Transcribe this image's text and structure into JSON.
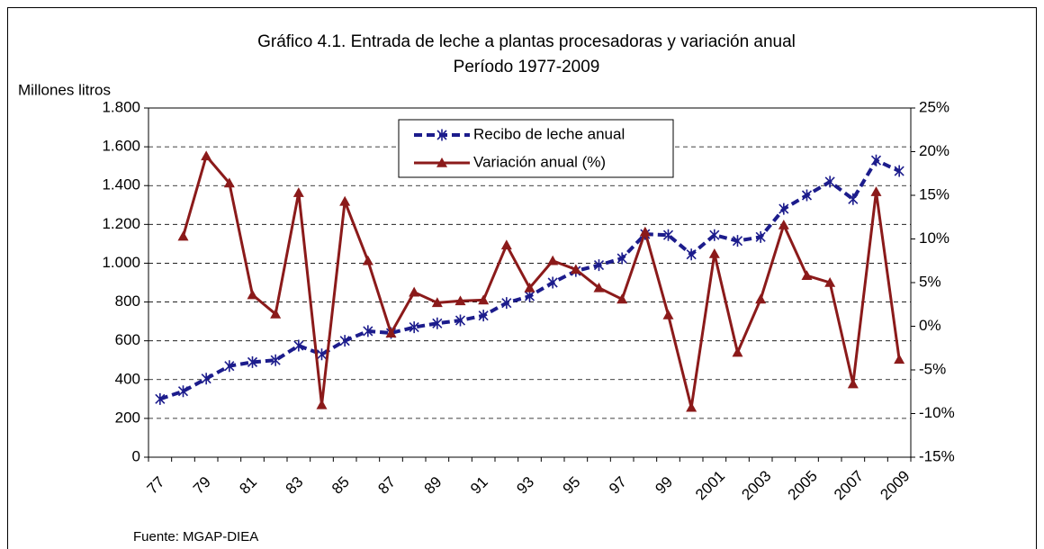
{
  "chart_data": {
    "type": "line",
    "title": "Gráfico 4.1. Entrada de leche a plantas procesadoras y variación anual",
    "subtitle": "Período 1977-2009",
    "y_label": "Millones litros",
    "source": "Fuente: MGAP-DIEA",
    "categories": [
      "77",
      null,
      "79",
      null,
      "81",
      null,
      "83",
      null,
      "85",
      null,
      "87",
      null,
      "89",
      null,
      "91",
      null,
      "93",
      null,
      "95",
      null,
      "97",
      null,
      "99",
      null,
      "2001",
      null,
      "2003",
      null,
      "2005",
      null,
      "2007",
      null,
      "2009"
    ],
    "series": [
      {
        "name": "Recibo de leche anual",
        "color": "#1c1c8c",
        "values": [
          300,
          340,
          405,
          470,
          490,
          500,
          575,
          530,
          600,
          650,
          640,
          670,
          690,
          705,
          730,
          795,
          830,
          900,
          960,
          990,
          1025,
          1150,
          1145,
          1045,
          1145,
          1115,
          1135,
          1280,
          1350,
          1420,
          1330,
          1530,
          1475
        ]
      },
      {
        "name": "Variación anual (%)",
        "color": "#8b1a1a",
        "axis": "y2",
        "values": [
          null,
          10.3,
          19.5,
          16.4,
          3.6,
          1.4,
          15.3,
          -9.0,
          14.3,
          7.5,
          -0.8,
          3.9,
          2.7,
          2.9,
          3.0,
          9.3,
          4.4,
          7.5,
          6.5,
          4.4,
          3.1,
          10.8,
          1.3,
          -9.3,
          8.3,
          -3.0,
          3.1,
          11.6,
          5.8,
          5.0,
          -6.6,
          15.4,
          -3.8
        ]
      }
    ],
    "ylim": [
      0,
      1800
    ],
    "yticks": [
      0,
      200,
      400,
      600,
      800,
      {
        "value": 1000,
        "label": "1.000"
      },
      {
        "value": 1200,
        "label": "1.200"
      },
      {
        "value": 1400,
        "label": "1.400"
      },
      {
        "value": 1600,
        "label": "1.600"
      },
      {
        "value": 1800,
        "label": "1.800"
      }
    ],
    "y2lim": [
      -15,
      25
    ],
    "y2ticks": [
      {
        "value": -15,
        "label": "-15%"
      },
      {
        "value": -10,
        "label": "-10%"
      },
      {
        "value": -5,
        "label": "-5%"
      },
      {
        "value": 0,
        "label": "0%"
      },
      {
        "value": 5,
        "label": "5%"
      },
      {
        "value": 10,
        "label": "10%"
      },
      {
        "value": 15,
        "label": "15%"
      },
      {
        "value": 20,
        "label": "20%"
      },
      {
        "value": 25,
        "label": "25%"
      }
    ],
    "grid": true,
    "legend": "top"
  }
}
